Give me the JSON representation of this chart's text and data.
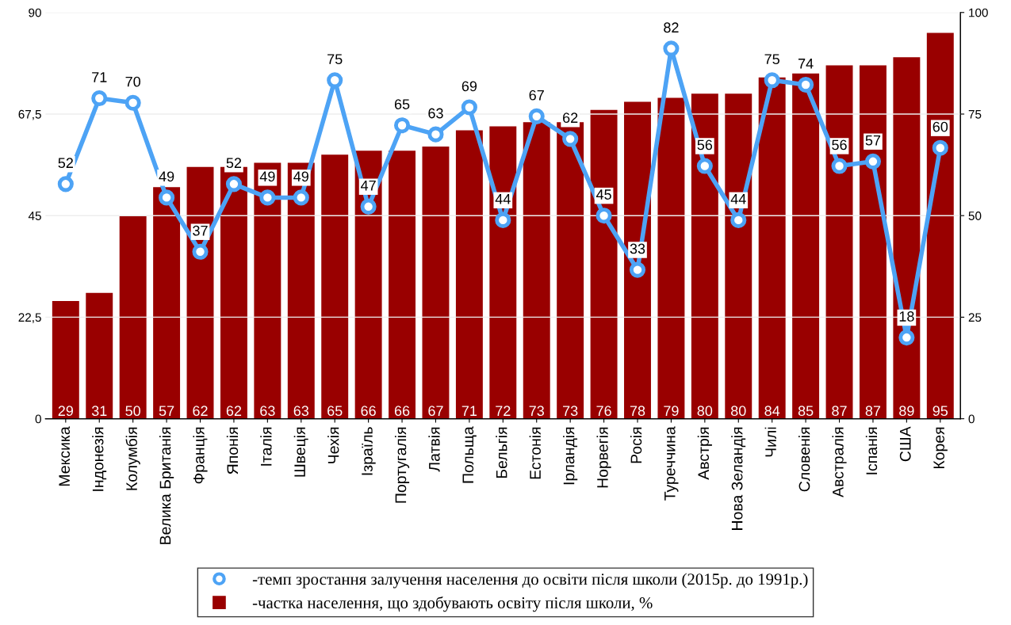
{
  "chart_data": {
    "type": "bar",
    "categories": [
      "Мексика",
      "Індонезія",
      "Колумбія",
      "Велика Британія",
      "Франція",
      "Японія",
      "Італія",
      "Швеція",
      "Чехія",
      "Ізраїль",
      "Португалія",
      "Латвія",
      "Польща",
      "Бельгія",
      "Естонія",
      "Ірландія",
      "Норвегія",
      "Росія",
      "Туреччина",
      "Австрія",
      "Нова Зеландія",
      "Чилі",
      "Словенія",
      "Австралія",
      "Іспанія",
      "США",
      "Корея"
    ],
    "series": [
      {
        "name": "-темп зростання залучення населення до освіти після школи (2015р. до 1991р.)",
        "type": "line",
        "axis": "y",
        "color": "#4da3f5",
        "marker": "circle",
        "line_style": "solid",
        "values": [
          52,
          71,
          70,
          49,
          37,
          52,
          49,
          49,
          75,
          47,
          65,
          63,
          69,
          44,
          67,
          62,
          45,
          33,
          82,
          56,
          44,
          75,
          74,
          56,
          57,
          18,
          60
        ]
      },
      {
        "name": "-частка населення, що здобувають освіту після школи, %",
        "axis": "y2",
        "color": "#990000",
        "values": [
          29,
          31,
          50,
          57,
          62,
          62,
          63,
          63,
          65,
          66,
          66,
          67,
          71,
          72,
          73,
          73,
          76,
          78,
          79,
          80,
          80,
          84,
          85,
          87,
          87,
          89,
          95
        ]
      }
    ],
    "ylim": [
      0,
      90
    ],
    "yticks": [
      0,
      {
        "value": 22.5,
        "label": "22,5"
      },
      45,
      {
        "value": 67.5,
        "label": "67,5"
      },
      90
    ],
    "y2lim": [
      0,
      100
    ],
    "y2ticks": [
      0,
      25,
      50,
      75,
      100
    ],
    "grid": "y",
    "legend": "bottom",
    "data_labels": true
  }
}
